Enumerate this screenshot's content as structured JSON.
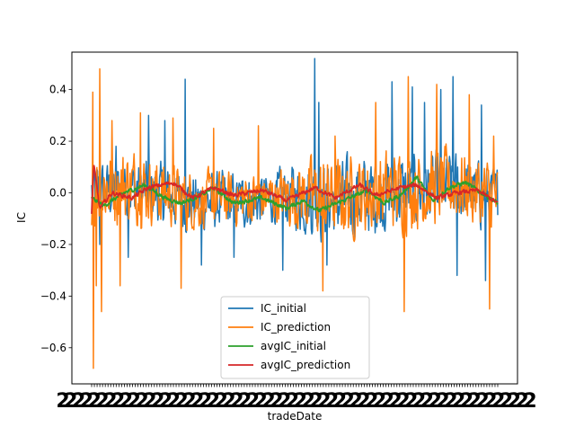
{
  "chart_data": {
    "type": "line",
    "title": "",
    "xlabel": "tradeDate",
    "ylabel": "IC",
    "ylim": [
      -0.74,
      0.545
    ],
    "yticks": [
      -0.6,
      -0.4,
      -0.2,
      0.0,
      0.2,
      0.4
    ],
    "ytick_labels": [
      "−0.6",
      "−0.4",
      "−0.2",
      "0.0",
      "0.2",
      "0.4"
    ],
    "grid": false,
    "legend_placement": "lower-center",
    "x_tick_text": "2",
    "x_tick_count": 150,
    "series": [
      {
        "name": "IC_initial",
        "color": "#1f77b4",
        "stroke": 1.5,
        "points": 700,
        "base": [
          [
            0,
            0.0
          ],
          [
            0.1,
            0.02
          ],
          [
            0.25,
            -0.04
          ],
          [
            0.4,
            -0.03
          ],
          [
            0.5,
            -0.01
          ],
          [
            0.6,
            -0.03
          ],
          [
            0.75,
            0.0
          ],
          [
            0.9,
            0.02
          ],
          [
            1,
            -0.03
          ]
        ],
        "amp": [
          [
            0,
            0.12
          ],
          [
            0.3,
            0.12
          ],
          [
            0.45,
            0.1
          ],
          [
            0.55,
            0.16
          ],
          [
            0.75,
            0.15
          ],
          [
            1,
            0.13
          ]
        ],
        "spikes": [
          [
            0.01,
            -0.12
          ],
          [
            0.02,
            -0.2
          ],
          [
            0.06,
            0.18
          ],
          [
            0.09,
            -0.25
          ],
          [
            0.14,
            0.3
          ],
          [
            0.18,
            0.28
          ],
          [
            0.23,
            0.44
          ],
          [
            0.27,
            -0.28
          ],
          [
            0.35,
            -0.25
          ],
          [
            0.47,
            -0.3
          ],
          [
            0.55,
            0.52
          ],
          [
            0.56,
            0.35
          ],
          [
            0.58,
            -0.28
          ],
          [
            0.74,
            0.43
          ],
          [
            0.79,
            0.41
          ],
          [
            0.82,
            0.35
          ],
          [
            0.86,
            0.4
          ],
          [
            0.89,
            0.45
          ],
          [
            0.9,
            -0.32
          ],
          [
            0.96,
            0.34
          ],
          [
            0.97,
            -0.34
          ]
        ]
      },
      {
        "name": "IC_prediction",
        "color": "#ff7f0e",
        "stroke": 1.5,
        "points": 700,
        "base": [
          [
            0,
            0.02
          ],
          [
            0.1,
            0.03
          ],
          [
            0.25,
            -0.03
          ],
          [
            0.4,
            -0.02
          ],
          [
            0.5,
            -0.01
          ],
          [
            0.6,
            -0.02
          ],
          [
            0.75,
            0.01
          ],
          [
            0.9,
            0.03
          ],
          [
            1,
            -0.02
          ]
        ],
        "amp": [
          [
            0,
            0.18
          ],
          [
            0.15,
            0.13
          ],
          [
            0.3,
            0.11
          ],
          [
            0.45,
            0.1
          ],
          [
            0.55,
            0.16
          ],
          [
            0.75,
            0.16
          ],
          [
            1,
            0.14
          ]
        ],
        "spikes": [
          [
            0.003,
            0.39
          ],
          [
            0.005,
            -0.68
          ],
          [
            0.012,
            -0.36
          ],
          [
            0.02,
            0.48
          ],
          [
            0.025,
            -0.46
          ],
          [
            0.05,
            0.28
          ],
          [
            0.07,
            -0.36
          ],
          [
            0.12,
            0.31
          ],
          [
            0.2,
            0.29
          ],
          [
            0.22,
            -0.37
          ],
          [
            0.3,
            0.25
          ],
          [
            0.41,
            0.26
          ],
          [
            0.5,
            0.34
          ],
          [
            0.57,
            -0.38
          ],
          [
            0.6,
            0.22
          ],
          [
            0.7,
            0.35
          ],
          [
            0.78,
            0.45
          ],
          [
            0.77,
            -0.46
          ],
          [
            0.85,
            0.42
          ],
          [
            0.93,
            0.38
          ],
          [
            0.98,
            -0.45
          ],
          [
            0.99,
            0.22
          ]
        ]
      },
      {
        "name": "avgIC_initial",
        "color": "#2ca02c",
        "stroke": 1.8,
        "points": 700,
        "base": [
          [
            0,
            -0.02
          ],
          [
            0.03,
            -0.05
          ],
          [
            0.08,
            0.0
          ],
          [
            0.13,
            0.03
          ],
          [
            0.18,
            -0.02
          ],
          [
            0.22,
            -0.04
          ],
          [
            0.27,
            -0.01
          ],
          [
            0.3,
            0.02
          ],
          [
            0.35,
            -0.04
          ],
          [
            0.42,
            -0.02
          ],
          [
            0.48,
            -0.06
          ],
          [
            0.52,
            -0.03
          ],
          [
            0.56,
            -0.07
          ],
          [
            0.62,
            -0.03
          ],
          [
            0.68,
            0.01
          ],
          [
            0.72,
            -0.04
          ],
          [
            0.76,
            -0.01
          ],
          [
            0.8,
            0.06
          ],
          [
            0.84,
            -0.03
          ],
          [
            0.88,
            0.02
          ],
          [
            0.92,
            0.04
          ],
          [
            0.96,
            0.0
          ],
          [
            1,
            -0.04
          ]
        ],
        "amp": [
          [
            0,
            0.012
          ],
          [
            1,
            0.012
          ]
        ],
        "spikes": []
      },
      {
        "name": "avgIC_prediction",
        "color": "#d62728",
        "stroke": 1.8,
        "points": 700,
        "base": [
          [
            0,
            -0.08
          ],
          [
            0.005,
            0.11
          ],
          [
            0.02,
            -0.06
          ],
          [
            0.05,
            0.0
          ],
          [
            0.1,
            -0.02
          ],
          [
            0.14,
            0.02
          ],
          [
            0.2,
            0.04
          ],
          [
            0.25,
            -0.02
          ],
          [
            0.3,
            0.02
          ],
          [
            0.35,
            -0.01
          ],
          [
            0.42,
            0.01
          ],
          [
            0.48,
            -0.03
          ],
          [
            0.55,
            0.02
          ],
          [
            0.6,
            -0.02
          ],
          [
            0.66,
            0.03
          ],
          [
            0.7,
            -0.01
          ],
          [
            0.76,
            0.02
          ],
          [
            0.8,
            0.03
          ],
          [
            0.85,
            -0.02
          ],
          [
            0.9,
            0.0
          ],
          [
            0.95,
            0.01
          ],
          [
            1,
            -0.04
          ]
        ],
        "amp": [
          [
            0,
            0.012
          ],
          [
            1,
            0.012
          ]
        ],
        "spikes": []
      }
    ]
  }
}
